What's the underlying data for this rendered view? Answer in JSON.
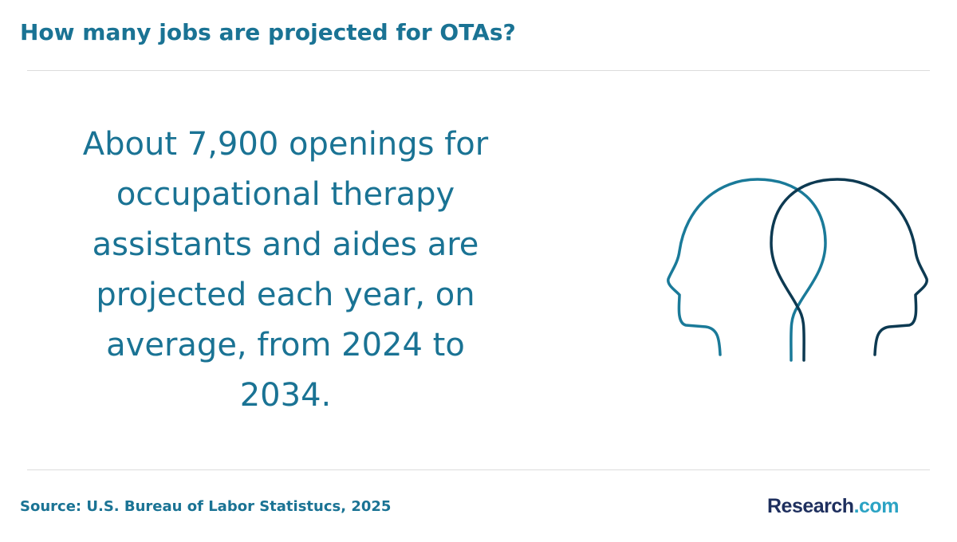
{
  "header": {
    "title": "How many jobs are projected for OTAs?"
  },
  "body": {
    "text": "About 7,900 openings for occupational therapy assistants and aides are projected each year, on average, from 2024 to 2034."
  },
  "footer": {
    "source": "Source: U.S. Bureau of Labor Statistucs, 2025",
    "logo": {
      "name": "Research",
      "suffix": ".com"
    }
  }
}
